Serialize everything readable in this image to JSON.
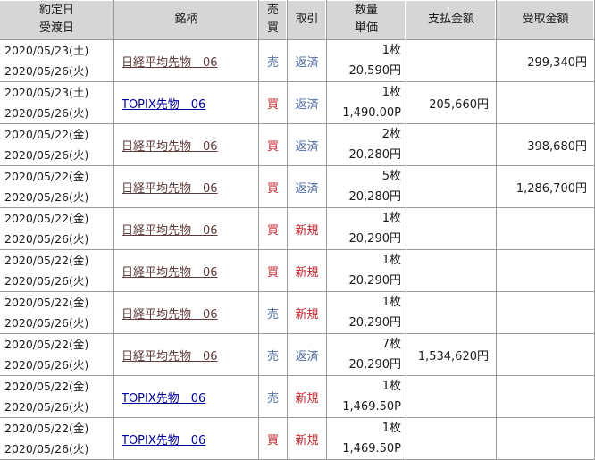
{
  "colors": {
    "header-bg": "#d6d6d6",
    "grid": "#9a9a9a",
    "sell-blue": "#4e6ca3",
    "buy-red": "#c5232b",
    "repay-blue": "#4e6ca3",
    "new-red": "#c5232b",
    "link-visited": "#5e3a3a",
    "link-unvisited": "#000099",
    "text": "#1a1a1a"
  },
  "header": {
    "date_line1": "約定日",
    "date_line2": "受渡日",
    "symbol": "銘柄",
    "side_line1": "売",
    "side_line2": "買",
    "trade": "取引",
    "qty_line1": "数量",
    "qty_line2": "単価",
    "payment": "支払金額",
    "receive": "受取金額"
  },
  "rows": [
    {
      "trade_date": "2020/05/23(土)",
      "delivery_date": "2020/05/26(火)",
      "symbol": "日経平均先物　06",
      "symbol_state": "visited",
      "side": "売",
      "side_type": "sell",
      "trade": "返済",
      "trade_type": "repay",
      "quantity": "1枚",
      "unit_price": "20,590円",
      "payment": "",
      "receive": "299,340円"
    },
    {
      "trade_date": "2020/05/23(土)",
      "delivery_date": "2020/05/26(火)",
      "symbol": "TOPIX先物　06",
      "symbol_state": "unvisited",
      "side": "買",
      "side_type": "buy",
      "trade": "返済",
      "trade_type": "repay",
      "quantity": "1枚",
      "unit_price": "1,490.00P",
      "payment": "205,660円",
      "receive": ""
    },
    {
      "trade_date": "2020/05/22(金)",
      "delivery_date": "2020/05/26(火)",
      "symbol": "日経平均先物　06",
      "symbol_state": "visited",
      "side": "買",
      "side_type": "buy",
      "trade": "返済",
      "trade_type": "repay",
      "quantity": "2枚",
      "unit_price": "20,280円",
      "payment": "",
      "receive": "398,680円"
    },
    {
      "trade_date": "2020/05/22(金)",
      "delivery_date": "2020/05/26(火)",
      "symbol": "日経平均先物　06",
      "symbol_state": "visited",
      "side": "買",
      "side_type": "buy",
      "trade": "返済",
      "trade_type": "repay",
      "quantity": "5枚",
      "unit_price": "20,280円",
      "payment": "",
      "receive": "1,286,700円"
    },
    {
      "trade_date": "2020/05/22(金)",
      "delivery_date": "2020/05/26(火)",
      "symbol": "日経平均先物　06",
      "symbol_state": "visited",
      "side": "買",
      "side_type": "buy",
      "trade": "新規",
      "trade_type": "new",
      "quantity": "1枚",
      "unit_price": "20,290円",
      "payment": "",
      "receive": ""
    },
    {
      "trade_date": "2020/05/22(金)",
      "delivery_date": "2020/05/26(火)",
      "symbol": "日経平均先物　06",
      "symbol_state": "visited",
      "side": "買",
      "side_type": "buy",
      "trade": "新規",
      "trade_type": "new",
      "quantity": "1枚",
      "unit_price": "20,290円",
      "payment": "",
      "receive": ""
    },
    {
      "trade_date": "2020/05/22(金)",
      "delivery_date": "2020/05/26(火)",
      "symbol": "日経平均先物　06",
      "symbol_state": "visited",
      "side": "売",
      "side_type": "sell",
      "trade": "新規",
      "trade_type": "new",
      "quantity": "1枚",
      "unit_price": "20,290円",
      "payment": "",
      "receive": ""
    },
    {
      "trade_date": "2020/05/22(金)",
      "delivery_date": "2020/05/26(火)",
      "symbol": "日経平均先物　06",
      "symbol_state": "visited",
      "side": "売",
      "side_type": "sell",
      "trade": "返済",
      "trade_type": "repay",
      "quantity": "7枚",
      "unit_price": "20,290円",
      "payment": "1,534,620円",
      "receive": ""
    },
    {
      "trade_date": "2020/05/22(金)",
      "delivery_date": "2020/05/26(火)",
      "symbol": "TOPIX先物　06",
      "symbol_state": "unvisited",
      "side": "売",
      "side_type": "sell",
      "trade": "新規",
      "trade_type": "new",
      "quantity": "1枚",
      "unit_price": "1,469.50P",
      "payment": "",
      "receive": ""
    },
    {
      "trade_date": "2020/05/22(金)",
      "delivery_date": "2020/05/26(火)",
      "symbol": "TOPIX先物　06",
      "symbol_state": "unvisited",
      "side": "買",
      "side_type": "buy",
      "trade": "新規",
      "trade_type": "new",
      "quantity": "1枚",
      "unit_price": "1,469.50P",
      "payment": "",
      "receive": ""
    }
  ]
}
